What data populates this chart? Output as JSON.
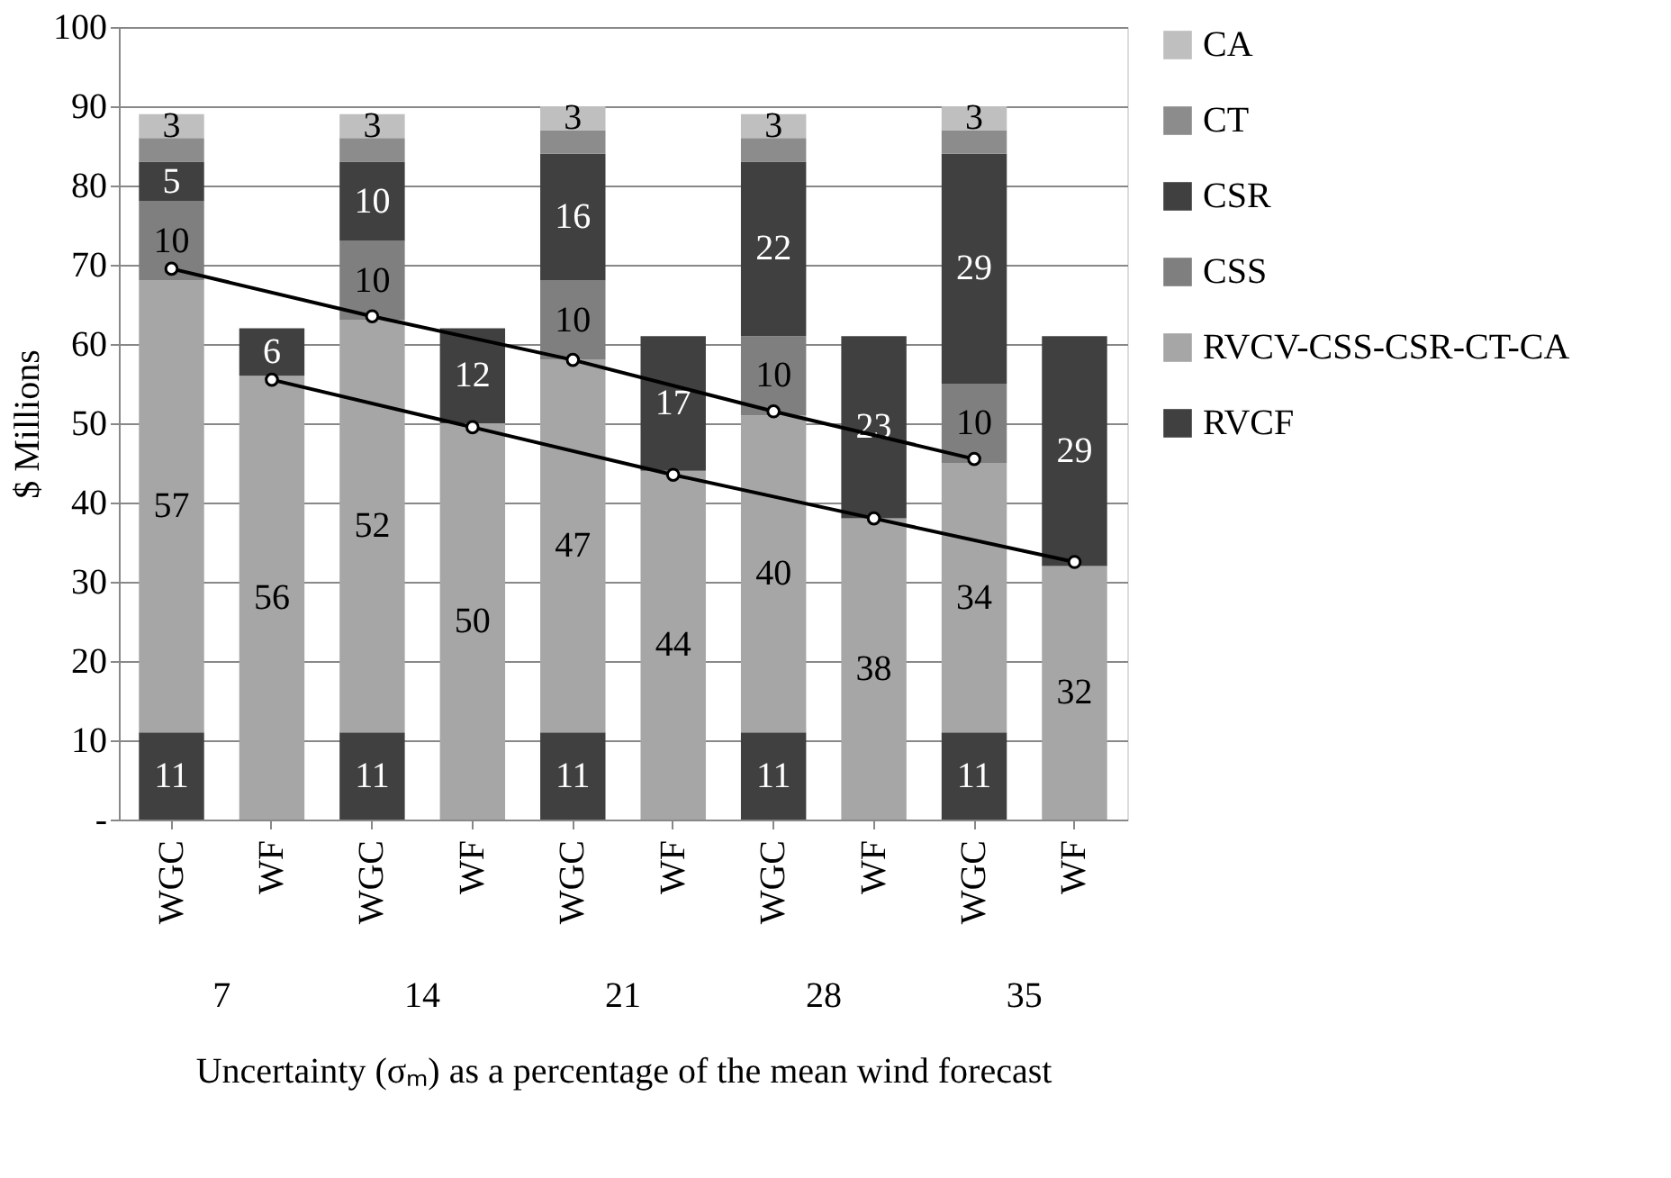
{
  "chart_data": {
    "type": "bar",
    "stacked": true,
    "categories": [
      "WGC",
      "WF",
      "WGC",
      "WF",
      "WGC",
      "WF",
      "WGC",
      "WF",
      "WGC",
      "WF"
    ],
    "xlabel": "Uncertainty (σₘ) as a percentage of the mean wind forecast",
    "ylabel": "$ Millions",
    "annotations": [
      "7",
      "14",
      "21",
      "28",
      "35"
    ],
    "series": [
      {
        "name": "RVCF",
        "color": "#404040",
        "values": [
          11,
          null,
          11,
          null,
          11,
          null,
          11,
          null,
          11,
          null
        ],
        "value_labels": [
          "11",
          null,
          "11",
          null,
          "11",
          null,
          "11",
          null,
          "11",
          null
        ]
      },
      {
        "name": "RVCV-CSS-CSR-CT-CA",
        "color": "#a6a6a6",
        "values": [
          57,
          56,
          52,
          50,
          47,
          44,
          40,
          38,
          34,
          32
        ],
        "value_labels": [
          "57",
          "56",
          "52",
          "50",
          "47",
          "44",
          "40",
          "38",
          "34",
          "32"
        ]
      },
      {
        "name": "CSS",
        "color": "#7f7f7f",
        "values": [
          10,
          null,
          10,
          null,
          10,
          null,
          10,
          null,
          10,
          null
        ],
        "value_labels": [
          "10",
          null,
          "10",
          null,
          "10",
          null,
          "10",
          null,
          "10",
          null
        ]
      },
      {
        "name": "CSR",
        "color": "#404040",
        "values": [
          5,
          6,
          10,
          12,
          16,
          17,
          22,
          23,
          29,
          29
        ],
        "value_labels": [
          "5",
          "6",
          "10",
          "12",
          "16",
          "17",
          "22",
          "23",
          "29",
          "29"
        ]
      },
      {
        "name": "CT",
        "color": "#8c8c8c",
        "values": [
          3,
          null,
          3,
          null,
          3,
          null,
          3,
          null,
          3,
          null
        ]
      },
      {
        "name": "CA",
        "color": "#bfbfbf",
        "values": [
          3,
          null,
          3,
          null,
          3,
          null,
          3,
          null,
          3,
          null
        ],
        "value_labels": [
          "3",
          null,
          "3",
          null,
          "3",
          null,
          "3",
          null,
          "3",
          null
        ]
      },
      {
        "type": "line",
        "color": "#000000",
        "values": [
          69.5,
          null,
          63.5,
          null,
          58,
          null,
          51.5,
          null,
          45.5,
          null
        ]
      },
      {
        "type": "line",
        "color": "#000000",
        "values": [
          null,
          55.5,
          null,
          49.5,
          null,
          43.5,
          null,
          38,
          null,
          32.5
        ]
      }
    ],
    "ylim": [
      0,
      100
    ],
    "yticks": [
      {
        "value": 0,
        "label": "-"
      },
      10,
      20,
      30,
      40,
      50,
      60,
      70,
      80,
      90,
      100
    ],
    "grid": "y",
    "legend": "right",
    "marker": "circle",
    "line_style": "solid"
  }
}
